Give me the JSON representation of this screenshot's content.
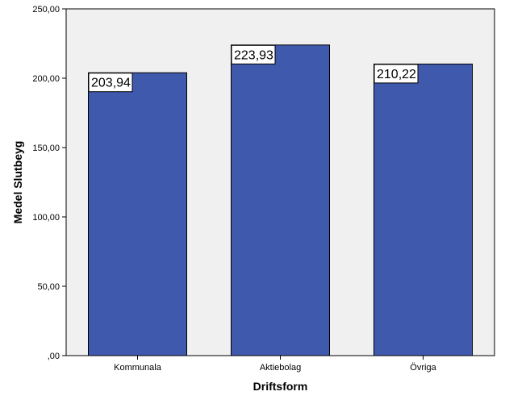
{
  "chart_data": {
    "type": "bar",
    "categories": [
      "Kommunala",
      "Aktiebolag",
      "Övriga"
    ],
    "values": [
      203.94,
      223.93,
      210.22
    ],
    "data_labels": [
      "203,94",
      "223,93",
      "210,22"
    ],
    "xlabel": "Driftsform",
    "ylabel": "Medel Slutbeyg",
    "ylim": [
      0,
      250
    ],
    "yticks": [
      0,
      50,
      100,
      150,
      200,
      250
    ],
    "ytick_labels": [
      ",00",
      "50,00",
      "100,00",
      "150,00",
      "200,00",
      "250,00"
    ],
    "grid": false,
    "legend": "none",
    "colors": {
      "bar_fill": "#3f59ad",
      "bar_stroke": "#000000",
      "plot_background": "#f0f0f0",
      "page_background": "#ffffff"
    }
  }
}
